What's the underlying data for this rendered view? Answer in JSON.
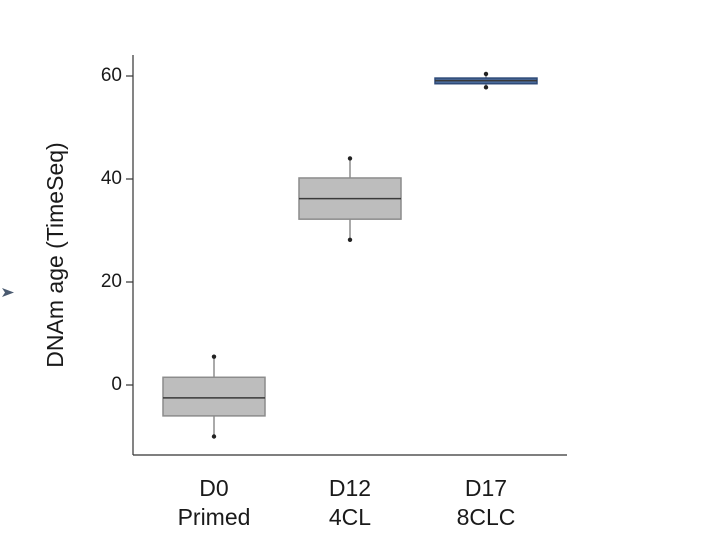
{
  "chart_data": {
    "type": "box",
    "ylabel": "DNAm age (TimeSeq)",
    "ylim": [
      -14,
      64
    ],
    "yticks": [
      0,
      20,
      40,
      60
    ],
    "ytick_labels": [
      "0",
      "20",
      "40",
      "60"
    ],
    "categories": [
      {
        "line1": "D0",
        "line2": "Primed"
      },
      {
        "line1": "D12",
        "line2": "4CL"
      },
      {
        "line1": "D17",
        "line2": "8CLC"
      }
    ],
    "boxes": [
      {
        "min": -10,
        "q1": -6,
        "median": -2.5,
        "q3": 1.5,
        "max": 5.5,
        "fill": "#bdbdbd",
        "edge": "#8c8c8c"
      },
      {
        "min": 28.2,
        "q1": 32.2,
        "median": 36.2,
        "q3": 40.2,
        "max": 44,
        "fill": "#bdbdbd",
        "edge": "#8c8c8c"
      },
      {
        "min": 57.8,
        "q1": 58.5,
        "median": 59.1,
        "q3": 59.6,
        "max": 60.4,
        "fill": "#4a6b9c",
        "edge": "#2e4a78"
      }
    ],
    "side_marker_color": "#4a5a70"
  }
}
